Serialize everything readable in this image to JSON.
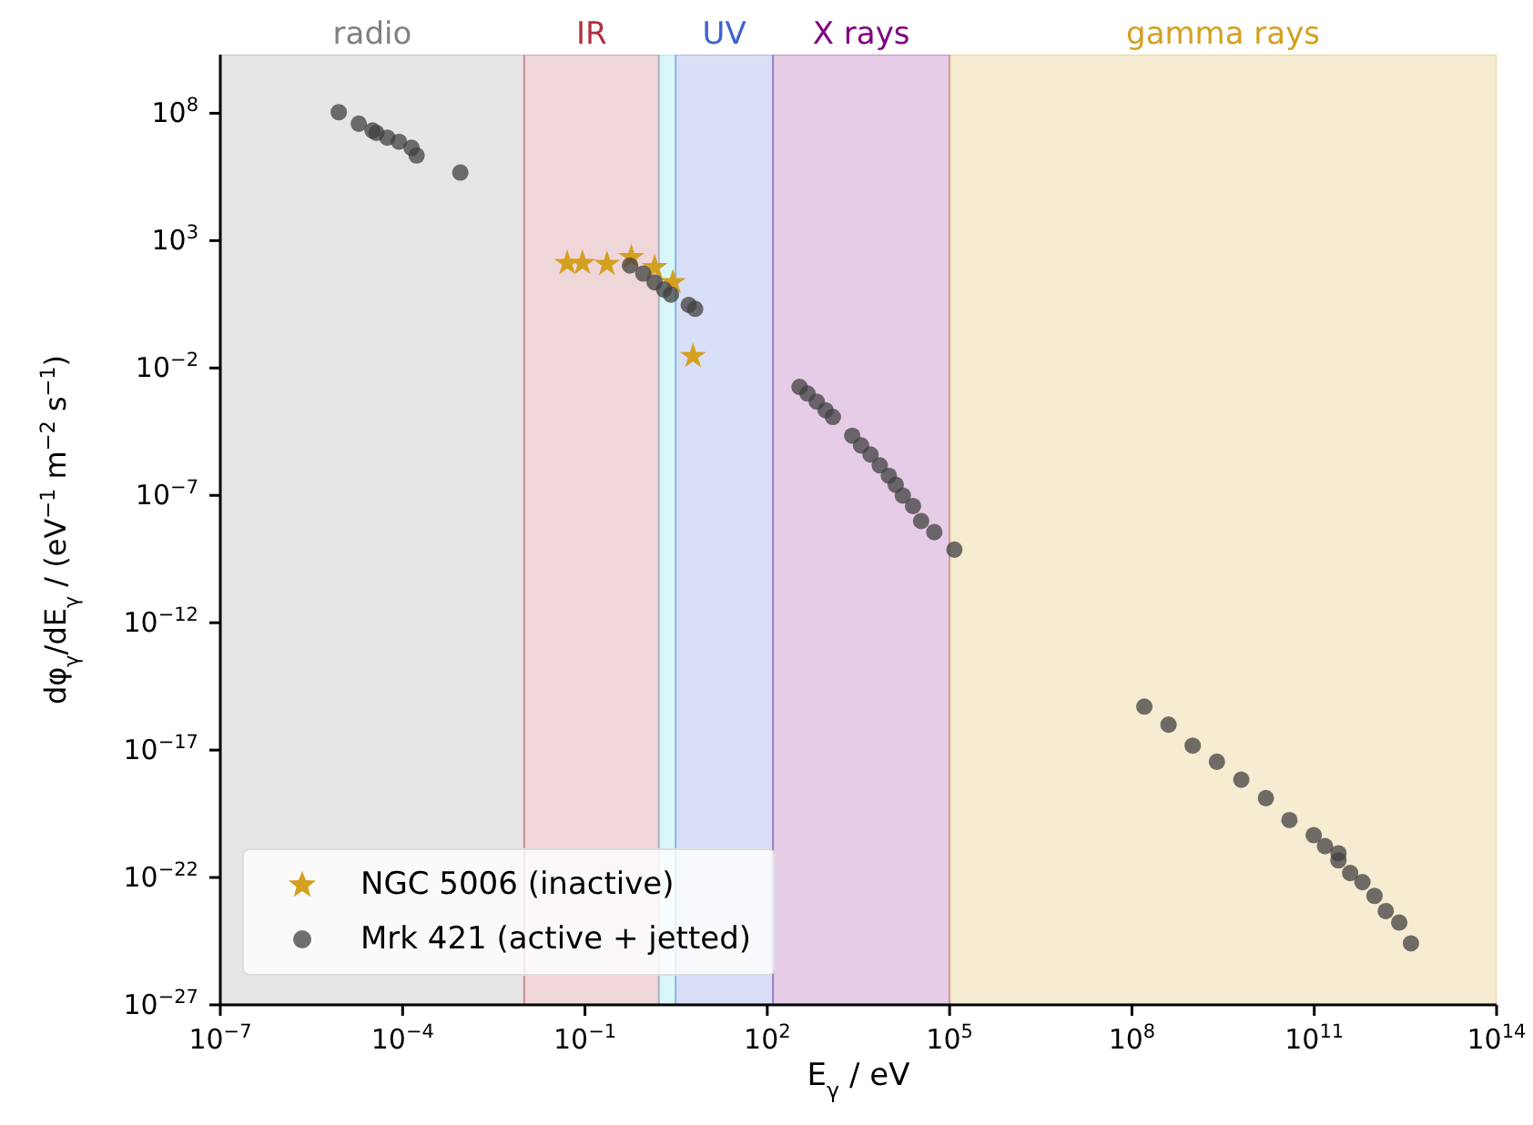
{
  "chart_data": {
    "type": "scatter",
    "xlabel": "E$_{γ}$ / eV",
    "ylabel": "dφ$_{γ}$/dE$_{γ}$ / (eV$^{−1}$ m$^{−2}$ s$^{−1}$)",
    "log": "xy",
    "xlim": [
      1e-07,
      100000000000000.0
    ],
    "xticks": [
      {
        "value": 1e-07,
        "label": "10$^{−7}$"
      },
      {
        "value": 0.0001,
        "label": "10$^{−4}$"
      },
      {
        "value": 0.1,
        "label": "10$^{−1}$"
      },
      {
        "value": 100,
        "label": "10$^{2}$"
      },
      {
        "value": 100000.0,
        "label": "10$^{5}$"
      },
      {
        "value": 100000000.0,
        "label": "10$^{8}$"
      },
      {
        "value": 100000000000.0,
        "label": "10$^{11}$"
      },
      {
        "value": 100000000000000.0,
        "label": "10$^{14}$"
      }
    ],
    "ylim": [
      1e-27,
      20000000000.0
    ],
    "yticks": [
      {
        "value": 1e-27,
        "label": "10$^{−27}$"
      },
      {
        "value": 1e-22,
        "label": "10$^{−22}$"
      },
      {
        "value": 1e-17,
        "label": "10$^{−17}$"
      },
      {
        "value": 1e-12,
        "label": "10$^{−12}$"
      },
      {
        "value": 1e-07,
        "label": "10$^{−7}$"
      },
      {
        "value": 0.01,
        "label": "10$^{−2}$"
      },
      {
        "value": 1000,
        "label": "10$^{3}$"
      },
      {
        "value": 100000000.0,
        "label": "10$^{8}$"
      }
    ],
    "grid": false,
    "legend": "bottom left",
    "bands": [
      {
        "axis": "x",
        "from": 1e-07,
        "to": 0.01,
        "label": "radio",
        "color": "#808080"
      },
      {
        "axis": "x",
        "from": 0.01,
        "to": 1.65,
        "label": "IR",
        "color": "#b03040"
      },
      {
        "axis": "x",
        "from": 1.65,
        "to": 3.1,
        "label": null,
        "color": "#40d0e0"
      },
      {
        "axis": "x",
        "from": 3.1,
        "to": 124,
        "label": "UV",
        "color": "#4060d0"
      },
      {
        "axis": "x",
        "from": 124,
        "to": 100000.0,
        "label": "X rays",
        "color": "#800080"
      },
      {
        "axis": "x",
        "from": 100000.0,
        "to": 100000000000000.0,
        "label": "gamma rays",
        "color": "#d4a020"
      }
    ],
    "series": [
      {
        "name": "NGC 5006 (inactive)",
        "color": "#d4a020",
        "marker": "star",
        "x": [
          0.051,
          0.091,
          0.23,
          0.58,
          1.4,
          2.8,
          6.0
        ],
        "values": [
          130,
          130,
          120,
          220,
          89,
          23,
          0.029
        ]
      },
      {
        "name": "Mrk 421 (active + jetted)",
        "color": "#404040",
        "marker": "circle",
        "x": [
          8.9e-06,
          1.9e-05,
          3.2e-05,
          3.7e-05,
          5.6e-05,
          8.7e-05,
          0.00014,
          0.00017,
          0.00089,
          0.55,
          0.91,
          1.4,
          2.0,
          2.6,
          5.1,
          6.5,
          340,
          460,
          650,
          910,
          1200,
          2500,
          3500,
          5000,
          7100,
          10000.0,
          13000.0,
          17000.0,
          25000.0,
          34000.0,
          56000.0,
          120000.0,
          160000000.0,
          400000000.0,
          1000000000.0,
          2500000000.0,
          6300000000.0,
          16000000000.0,
          39000000000.0,
          98000000000.0,
          150000000000.0,
          250000000000.0,
          250000000000.0,
          390000000000.0,
          620000000000.0,
          980000000000.0,
          1500000000000.0,
          2500000000000.0,
          3900000000000.0
        ],
        "values": [
          110000000.0,
          39000000.0,
          21000000.0,
          17000000.0,
          11000000.0,
          7600000.0,
          4400000.0,
          2200000.0,
          470000.0,
          105,
          51,
          23,
          12,
          7.6,
          3.0,
          2.1,
          0.0018,
          0.001,
          0.00048,
          0.00022,
          0.00012,
          2.2e-05,
          9.1e-06,
          4e-06,
          1.5e-06,
          5.9e-07,
          2.6e-07,
          9.8e-08,
          3.8e-08,
          9.8e-09,
          3.6e-09,
          7.4e-10,
          5.1e-16,
          1e-16,
          1.5e-17,
          3.5e-18,
          6.9e-19,
          1.3e-19,
          1.8e-20,
          4.6e-21,
          1.7e-21,
          8.9e-22,
          4.7e-22,
          1.5e-22,
          6.6e-23,
          1.9e-23,
          4.8e-24,
          1.7e-24,
          2.6e-25
        ]
      }
    ]
  }
}
